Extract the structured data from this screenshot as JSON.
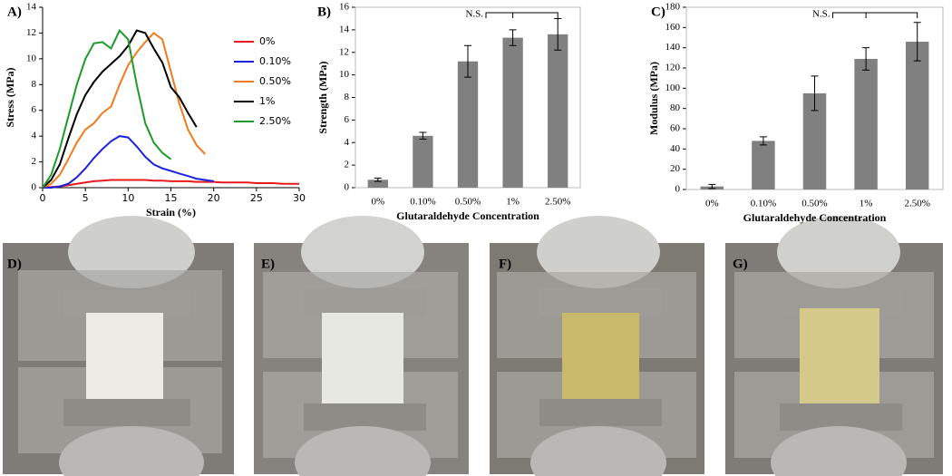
{
  "chart_data": [
    {
      "type": "line",
      "label": "A)",
      "xlabel": "Strain (%)",
      "ylabel": "Stress (MPa)",
      "x": [
        0,
        1,
        2,
        3,
        4,
        5,
        6,
        7,
        8,
        9,
        10,
        11,
        12,
        13,
        14,
        15,
        16,
        17,
        18,
        19,
        20,
        21,
        22,
        23,
        24,
        25,
        26,
        27,
        28,
        29,
        30
      ],
      "xlim": [
        0,
        30
      ],
      "xticks": [
        0,
        5,
        10,
        15,
        20,
        25,
        30
      ],
      "ylim": [
        0,
        14
      ],
      "yticks": [
        0,
        2,
        4,
        6,
        8,
        10,
        12,
        14
      ],
      "series": [
        {
          "name": "0%",
          "color": "#e8191b",
          "values": [
            0,
            0.05,
            0.1,
            0.2,
            0.3,
            0.4,
            0.5,
            0.55,
            0.6,
            0.6,
            0.6,
            0.6,
            0.6,
            0.55,
            0.55,
            0.5,
            0.5,
            0.5,
            0.45,
            0.45,
            0.45,
            0.4,
            0.4,
            0.4,
            0.4,
            0.35,
            0.35,
            0.35,
            0.3,
            0.3,
            0.3
          ]
        },
        {
          "name": "0.10%",
          "color": "#1a22e0",
          "values": [
            0,
            0,
            0.1,
            0.3,
            0.8,
            1.5,
            2.3,
            3.0,
            3.6,
            4.0,
            3.9,
            3.2,
            2.4,
            1.8,
            1.5,
            1.3,
            1.1,
            0.9,
            0.7,
            0.6,
            0.5,
            null,
            null,
            null,
            null,
            null,
            null,
            null,
            null,
            null,
            null
          ]
        },
        {
          "name": "0.50%",
          "color": "#f07a1c",
          "values": [
            0,
            0.3,
            1,
            2.2,
            3.5,
            4.5,
            5,
            5.8,
            6.3,
            8,
            9.5,
            10.5,
            11.3,
            12,
            11.5,
            9,
            6.5,
            4.5,
            3.3,
            2.6,
            null,
            null,
            null,
            null,
            null,
            null,
            null,
            null,
            null,
            null,
            null
          ]
        },
        {
          "name": "1%",
          "color": "#000000",
          "values": [
            0,
            0.6,
            1.8,
            3.8,
            5.7,
            7.2,
            8.2,
            9,
            9.6,
            10.2,
            11,
            12.2,
            12,
            10.8,
            9.7,
            7.8,
            7,
            5.8,
            4.7,
            null,
            null,
            null,
            null,
            null,
            null,
            null,
            null,
            null,
            null,
            null,
            null
          ]
        },
        {
          "name": "2.50%",
          "color": "#1e9a2a",
          "values": [
            0,
            1,
            3,
            5.5,
            8,
            10,
            11.2,
            11.3,
            10.8,
            12.2,
            11.5,
            8,
            5,
            3.5,
            2.7,
            2.2,
            null,
            null,
            null,
            null,
            null,
            null,
            null,
            null,
            null,
            null,
            null,
            null,
            null,
            null,
            null
          ]
        }
      ]
    },
    {
      "type": "bar",
      "label": "B)",
      "xlabel": "Glutaraldehyde Concentration",
      "ylabel": "Strength (MPa)",
      "annotation": "N.S.",
      "categories": [
        "0%",
        "0.10%",
        "0.50%",
        "1%",
        "2.50%"
      ],
      "values": [
        0.7,
        4.6,
        11.2,
        13.3,
        13.6
      ],
      "errors": [
        0.15,
        0.3,
        1.4,
        0.7,
        1.4
      ],
      "color": "#808080",
      "ylim": [
        0,
        16
      ],
      "yticks": [
        0,
        2,
        4,
        6,
        8,
        10,
        12,
        14,
        16
      ]
    },
    {
      "type": "bar",
      "label": "C)",
      "xlabel": "Glutaraldehyde Concentration",
      "ylabel": "Modulus (MPa)",
      "annotation": "N.S.",
      "categories": [
        "0%",
        "0.10%",
        "0.50%",
        "1%",
        "2.50%"
      ],
      "values": [
        3,
        48,
        95,
        129,
        146
      ],
      "errors": [
        2,
        4,
        17,
        11,
        19
      ],
      "color": "#808080",
      "ylim": [
        0,
        180
      ],
      "yticks": [
        0,
        20,
        40,
        60,
        80,
        100,
        120,
        140,
        160,
        180
      ]
    }
  ],
  "photos": [
    {
      "label": "D)"
    },
    {
      "label": "E)"
    },
    {
      "label": "F)"
    },
    {
      "label": "G)"
    }
  ]
}
